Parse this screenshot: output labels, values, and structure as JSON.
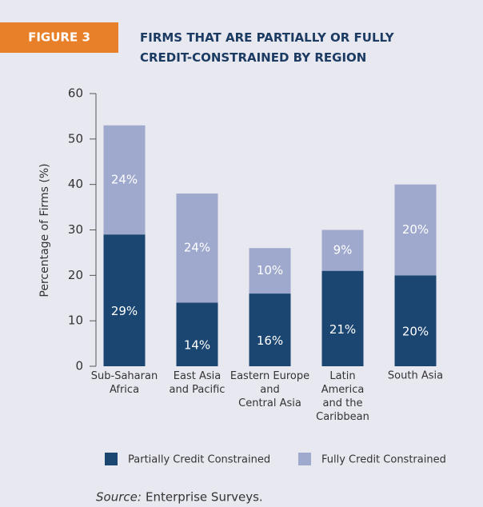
{
  "figure_label": "FIGURE 3",
  "chart_data": {
    "type": "stacked_bar",
    "title": "FIRMS THAT ARE PARTIALLY OR FULLY\nCREDIT-CONSTRAINED BY REGION",
    "ylabel": "Percentage of Firms (%)",
    "categories": [
      "Sub-Saharan\nAfrica",
      "East Asia\nand Pacific",
      "Eastern Europe\nand\nCentral Asia",
      "Latin\nAmerica\nand the\nCaribbean",
      "South Asia"
    ],
    "series": [
      {
        "name": "Partially Credit Constrained",
        "color": "#1b4671",
        "values": [
          29,
          14,
          16,
          21,
          20
        ],
        "value_labels": [
          "29%",
          "14%",
          "16%",
          "21%",
          "20%"
        ]
      },
      {
        "name": "Fully Credit Constrained",
        "color": "#9ea9cd",
        "values": [
          24,
          24,
          10,
          9,
          20
        ],
        "value_labels": [
          "24%",
          "24%",
          "10%",
          "9%",
          "20%"
        ]
      }
    ],
    "ylim": [
      0,
      60
    ],
    "yticks": [
      0,
      10,
      20,
      30,
      40,
      50,
      60
    ]
  },
  "source_label": "Source:",
  "source": "Enterprise Surveys."
}
